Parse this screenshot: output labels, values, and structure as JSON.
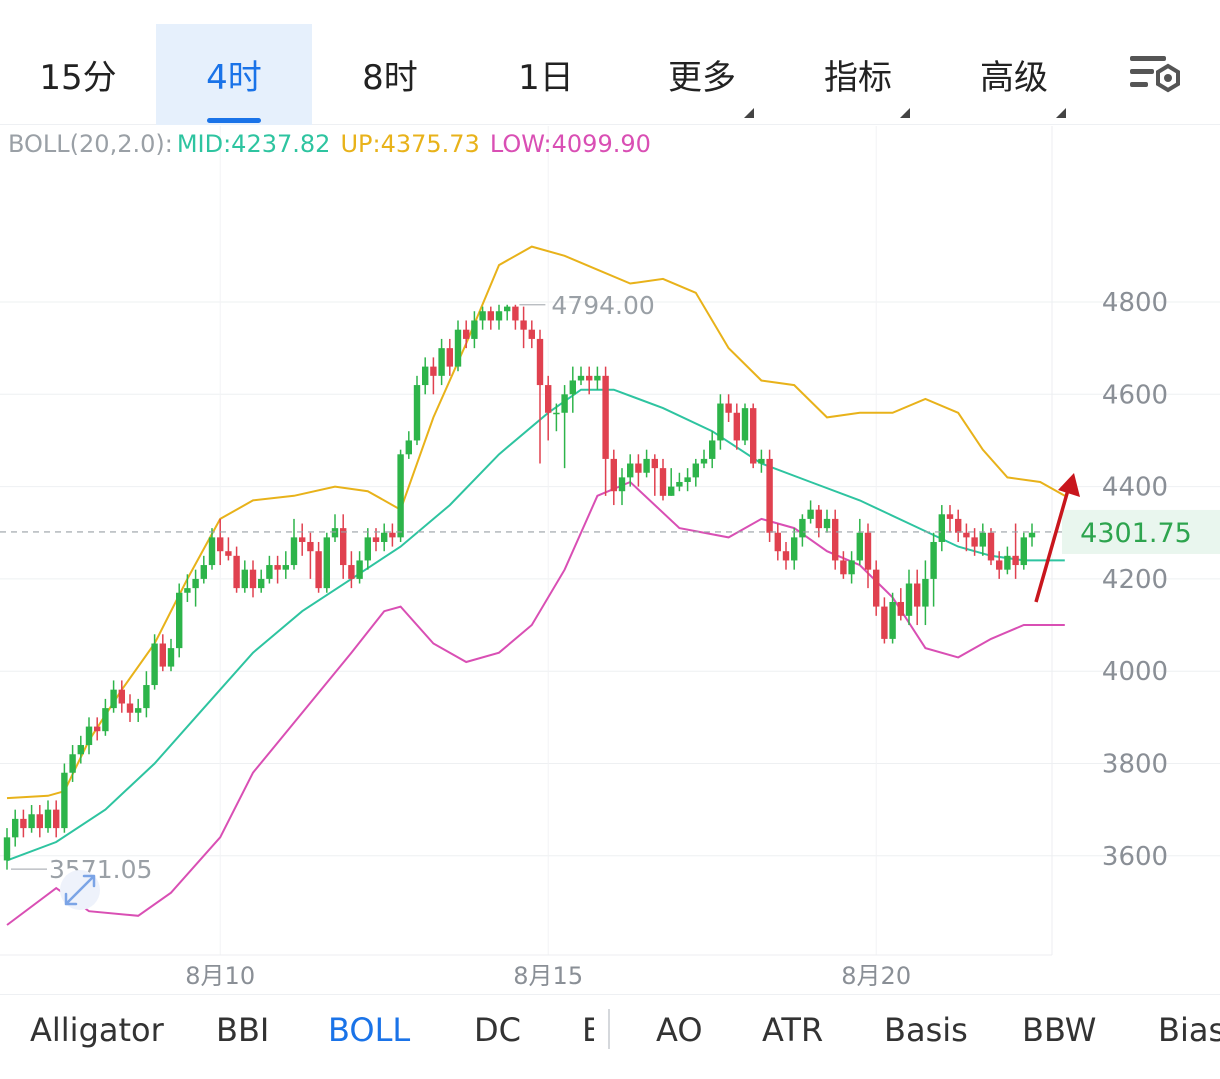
{
  "timeframe_tabs": [
    {
      "label": "15分",
      "active": false
    },
    {
      "label": "4时",
      "active": true
    },
    {
      "label": "8时",
      "active": false
    },
    {
      "label": "1日",
      "active": false
    },
    {
      "label": "更多",
      "active": false,
      "dropdown": true
    },
    {
      "label": "指标",
      "active": false,
      "dropdown": true
    },
    {
      "label": "高级",
      "active": false,
      "dropdown": true
    }
  ],
  "settings_icon": "chart-settings-icon",
  "legend": {
    "name": "BOLL(20,2.0):",
    "mid": "MID:4237.82",
    "up": "UP:4375.73",
    "low": "LOW:4099.90"
  },
  "colors": {
    "up_candle": "#2db44a",
    "down_candle": "#e0414f",
    "mid_line": "#2ec4a0",
    "upper_band": "#e8b21a",
    "lower_band": "#d94fb4",
    "accent": "#1a73e8",
    "price_label": "#2da44e",
    "arrow": "#c8161d"
  },
  "chart_data": {
    "type": "candlestick",
    "indicator": "BOLL(20,2.0)",
    "y_ticks": [
      "4800",
      "4600",
      "4400",
      "4200",
      "4000",
      "3800",
      "3600"
    ],
    "ylim": [
      3420,
      5150
    ],
    "x_tick_labels": [
      {
        "label": "8月10",
        "index": 26
      },
      {
        "label": "8月15",
        "index": 66
      },
      {
        "label": "8月20",
        "index": 106
      }
    ],
    "current_price": "4301.75",
    "current_price_value": 4301.75,
    "high_annotation": {
      "label": "4794.00",
      "index": 62,
      "value": 4794
    },
    "low_annotation": {
      "label": "3571.05",
      "index": 0,
      "value": 3571.05
    },
    "candles": [
      [
        3590,
        3640,
        3660,
        3570
      ],
      [
        3640,
        3680,
        3700,
        3620
      ],
      [
        3680,
        3660,
        3700,
        3640
      ],
      [
        3660,
        3690,
        3710,
        3650
      ],
      [
        3690,
        3660,
        3710,
        3640
      ],
      [
        3660,
        3700,
        3720,
        3650
      ],
      [
        3700,
        3660,
        3720,
        3640
      ],
      [
        3660,
        3780,
        3800,
        3650
      ],
      [
        3780,
        3820,
        3840,
        3760
      ],
      [
        3820,
        3840,
        3860,
        3800
      ],
      [
        3840,
        3880,
        3900,
        3820
      ],
      [
        3880,
        3870,
        3900,
        3850
      ],
      [
        3870,
        3920,
        3940,
        3860
      ],
      [
        3920,
        3960,
        3980,
        3910
      ],
      [
        3960,
        3930,
        3980,
        3910
      ],
      [
        3930,
        3910,
        3950,
        3890
      ],
      [
        3910,
        3920,
        3940,
        3890
      ],
      [
        3920,
        3970,
        4000,
        3900
      ],
      [
        3970,
        4060,
        4080,
        3960
      ],
      [
        4060,
        4010,
        4080,
        4000
      ],
      [
        4010,
        4050,
        4070,
        4000
      ],
      [
        4050,
        4170,
        4190,
        4030
      ],
      [
        4170,
        4180,
        4210,
        4150
      ],
      [
        4180,
        4200,
        4220,
        4140
      ],
      [
        4200,
        4230,
        4250,
        4190
      ],
      [
        4230,
        4290,
        4310,
        4220
      ],
      [
        4290,
        4260,
        4330,
        4230
      ],
      [
        4260,
        4250,
        4290,
        4240
      ],
      [
        4250,
        4180,
        4270,
        4170
      ],
      [
        4180,
        4220,
        4240,
        4170
      ],
      [
        4220,
        4180,
        4240,
        4160
      ],
      [
        4180,
        4200,
        4220,
        4170
      ],
      [
        4200,
        4230,
        4250,
        4190
      ],
      [
        4230,
        4220,
        4250,
        4190
      ],
      [
        4220,
        4230,
        4260,
        4200
      ],
      [
        4230,
        4290,
        4330,
        4220
      ],
      [
        4290,
        4280,
        4320,
        4250
      ],
      [
        4280,
        4260,
        4300,
        4200
      ],
      [
        4260,
        4180,
        4280,
        4170
      ],
      [
        4180,
        4290,
        4300,
        4170
      ],
      [
        4290,
        4310,
        4340,
        4280
      ],
      [
        4310,
        4230,
        4340,
        4200
      ],
      [
        4230,
        4200,
        4260,
        4180
      ],
      [
        4200,
        4240,
        4260,
        4190
      ],
      [
        4240,
        4290,
        4310,
        4220
      ],
      [
        4290,
        4280,
        4310,
        4260
      ],
      [
        4280,
        4300,
        4320,
        4260
      ],
      [
        4300,
        4290,
        4320,
        4270
      ],
      [
        4290,
        4470,
        4480,
        4280
      ],
      [
        4470,
        4500,
        4520,
        4460
      ],
      [
        4500,
        4620,
        4640,
        4490
      ],
      [
        4620,
        4660,
        4680,
        4600
      ],
      [
        4660,
        4640,
        4680,
        4600
      ],
      [
        4640,
        4700,
        4720,
        4620
      ],
      [
        4700,
        4660,
        4720,
        4640
      ],
      [
        4660,
        4740,
        4760,
        4650
      ],
      [
        4740,
        4720,
        4760,
        4700
      ],
      [
        4720,
        4760,
        4780,
        4700
      ],
      [
        4760,
        4780,
        4790,
        4740
      ],
      [
        4780,
        4760,
        4790,
        4740
      ],
      [
        4760,
        4780,
        4794,
        4740
      ],
      [
        4780,
        4790,
        4794,
        4760
      ],
      [
        4790,
        4760,
        4794,
        4740
      ],
      [
        4760,
        4740,
        4790,
        4700
      ],
      [
        4740,
        4720,
        4760,
        4700
      ],
      [
        4720,
        4620,
        4740,
        4450
      ],
      [
        4620,
        4560,
        4640,
        4500
      ],
      [
        4560,
        4560,
        4580,
        4520
      ],
      [
        4560,
        4600,
        4620,
        4440
      ],
      [
        4600,
        4630,
        4660,
        4560
      ],
      [
        4630,
        4640,
        4660,
        4620
      ],
      [
        4640,
        4630,
        4660,
        4600
      ],
      [
        4630,
        4640,
        4660,
        4610
      ],
      [
        4640,
        4460,
        4660,
        4380
      ],
      [
        4460,
        4390,
        4480,
        4360
      ],
      [
        4390,
        4420,
        4440,
        4360
      ],
      [
        4420,
        4450,
        4470,
        4400
      ],
      [
        4450,
        4430,
        4470,
        4400
      ],
      [
        4430,
        4460,
        4480,
        4420
      ],
      [
        4460,
        4440,
        4470,
        4380
      ],
      [
        4440,
        4380,
        4460,
        4370
      ],
      [
        4380,
        4400,
        4440,
        4380
      ],
      [
        4400,
        4410,
        4430,
        4390
      ],
      [
        4410,
        4420,
        4440,
        4390
      ],
      [
        4420,
        4450,
        4460,
        4400
      ],
      [
        4450,
        4460,
        4480,
        4440
      ],
      [
        4460,
        4500,
        4520,
        4440
      ],
      [
        4500,
        4580,
        4600,
        4480
      ],
      [
        4580,
        4560,
        4600,
        4540
      ],
      [
        4560,
        4500,
        4580,
        4480
      ],
      [
        4500,
        4570,
        4580,
        4490
      ],
      [
        4570,
        4450,
        4580,
        4440
      ],
      [
        4450,
        4460,
        4480,
        4430
      ],
      [
        4460,
        4300,
        4480,
        4280
      ],
      [
        4300,
        4260,
        4320,
        4240
      ],
      [
        4260,
        4240,
        4280,
        4220
      ],
      [
        4240,
        4290,
        4310,
        4220
      ],
      [
        4290,
        4330,
        4340,
        4270
      ],
      [
        4330,
        4350,
        4370,
        4320
      ],
      [
        4350,
        4310,
        4360,
        4290
      ],
      [
        4310,
        4330,
        4350,
        4300
      ],
      [
        4330,
        4240,
        4350,
        4220
      ],
      [
        4240,
        4210,
        4260,
        4200
      ],
      [
        4210,
        4240,
        4260,
        4190
      ],
      [
        4240,
        4300,
        4330,
        4230
      ],
      [
        4300,
        4220,
        4320,
        4180
      ],
      [
        4220,
        4140,
        4240,
        4120
      ],
      [
        4140,
        4070,
        4160,
        4060
      ],
      [
        4070,
        4150,
        4170,
        4060
      ],
      [
        4150,
        4120,
        4180,
        4110
      ],
      [
        4120,
        4190,
        4220,
        4100
      ],
      [
        4190,
        4140,
        4220,
        4100
      ],
      [
        4140,
        4200,
        4240,
        4100
      ],
      [
        4200,
        4280,
        4300,
        4140
      ],
      [
        4280,
        4340,
        4360,
        4260
      ],
      [
        4340,
        4330,
        4360,
        4300
      ],
      [
        4330,
        4300,
        4350,
        4280
      ],
      [
        4300,
        4290,
        4320,
        4260
      ],
      [
        4290,
        4270,
        4310,
        4250
      ],
      [
        4270,
        4300,
        4320,
        4250
      ],
      [
        4300,
        4240,
        4310,
        4230
      ],
      [
        4240,
        4220,
        4260,
        4200
      ],
      [
        4220,
        4250,
        4270,
        4210
      ],
      [
        4250,
        4230,
        4320,
        4200
      ],
      [
        4230,
        4290,
        4300,
        4220
      ],
      [
        4290,
        4300,
        4320,
        4270
      ]
    ],
    "upper_band": [
      [
        0,
        3725
      ],
      [
        5,
        3730
      ],
      [
        7,
        3740
      ],
      [
        10,
        3850
      ],
      [
        14,
        3960
      ],
      [
        18,
        4060
      ],
      [
        22,
        4200
      ],
      [
        26,
        4330
      ],
      [
        30,
        4370
      ],
      [
        35,
        4380
      ],
      [
        40,
        4400
      ],
      [
        44,
        4390
      ],
      [
        48,
        4350
      ],
      [
        52,
        4550
      ],
      [
        56,
        4710
      ],
      [
        60,
        4880
      ],
      [
        64,
        4920
      ],
      [
        68,
        4900
      ],
      [
        72,
        4870
      ],
      [
        76,
        4840
      ],
      [
        80,
        4850
      ],
      [
        84,
        4820
      ],
      [
        88,
        4700
      ],
      [
        92,
        4630
      ],
      [
        96,
        4620
      ],
      [
        100,
        4550
      ],
      [
        104,
        4560
      ],
      [
        108,
        4560
      ],
      [
        112,
        4590
      ],
      [
        116,
        4560
      ],
      [
        119,
        4480
      ],
      [
        122,
        4420
      ],
      [
        126,
        4410
      ],
      [
        129,
        4380
      ]
    ],
    "mid_band": [
      [
        0,
        3590
      ],
      [
        6,
        3630
      ],
      [
        12,
        3700
      ],
      [
        18,
        3800
      ],
      [
        24,
        3920
      ],
      [
        30,
        4040
      ],
      [
        36,
        4130
      ],
      [
        42,
        4200
      ],
      [
        48,
        4270
      ],
      [
        54,
        4360
      ],
      [
        60,
        4470
      ],
      [
        66,
        4560
      ],
      [
        70,
        4610
      ],
      [
        74,
        4610
      ],
      [
        80,
        4570
      ],
      [
        86,
        4520
      ],
      [
        92,
        4450
      ],
      [
        98,
        4410
      ],
      [
        104,
        4370
      ],
      [
        110,
        4320
      ],
      [
        116,
        4270
      ],
      [
        120,
        4250
      ],
      [
        124,
        4240
      ],
      [
        129,
        4240
      ]
    ],
    "lower_band": [
      [
        0,
        3450
      ],
      [
        6,
        3530
      ],
      [
        10,
        3480
      ],
      [
        16,
        3470
      ],
      [
        20,
        3520
      ],
      [
        26,
        3640
      ],
      [
        30,
        3780
      ],
      [
        36,
        3910
      ],
      [
        42,
        4040
      ],
      [
        46,
        4130
      ],
      [
        48,
        4140
      ],
      [
        52,
        4060
      ],
      [
        56,
        4020
      ],
      [
        60,
        4040
      ],
      [
        64,
        4100
      ],
      [
        68,
        4220
      ],
      [
        72,
        4380
      ],
      [
        76,
        4410
      ],
      [
        82,
        4310
      ],
      [
        88,
        4290
      ],
      [
        92,
        4330
      ],
      [
        96,
        4310
      ],
      [
        100,
        4260
      ],
      [
        104,
        4230
      ],
      [
        108,
        4160
      ],
      [
        112,
        4050
      ],
      [
        116,
        4030
      ],
      [
        120,
        4070
      ],
      [
        124,
        4100
      ],
      [
        129,
        4100
      ]
    ]
  },
  "indicator_tabs": [
    {
      "label": "Alligator",
      "active": false
    },
    {
      "label": "BBI",
      "active": false
    },
    {
      "label": "BOLL",
      "active": true
    },
    {
      "label": "DC",
      "active": false
    },
    {
      "label": "E",
      "active": false
    },
    {
      "label": "AO",
      "active": false
    },
    {
      "label": "ATR",
      "active": false
    },
    {
      "label": "Basis",
      "active": false
    },
    {
      "label": "BBW",
      "active": false
    },
    {
      "label": "Bias",
      "active": false
    }
  ]
}
